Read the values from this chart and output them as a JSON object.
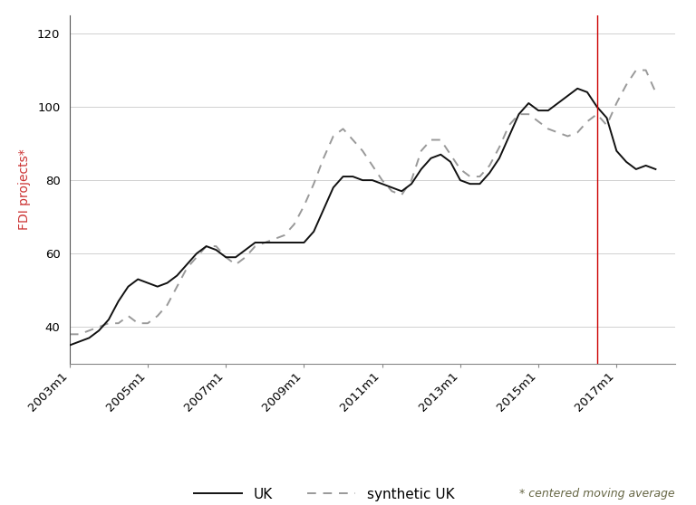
{
  "ylabel": "FDI projects*",
  "ylim": [
    30,
    125
  ],
  "yticks": [
    40,
    60,
    80,
    100,
    120
  ],
  "vline_x": 2016.5,
  "vline_color": "#cc0000",
  "background_color": "#ffffff",
  "grid_color": "#d0d0d0",
  "footnote": "* centered moving average",
  "uk_color": "#111111",
  "synthetic_color": "#999999",
  "xtick_labels": [
    "2003m1",
    "2005m1",
    "2007m1",
    "2009m1",
    "2011m1",
    "2013m1",
    "2015m1",
    "2017m1"
  ],
  "xtick_positions": [
    2003.0,
    2005.0,
    2007.0,
    2009.0,
    2011.0,
    2013.0,
    2015.0,
    2017.0
  ],
  "xlim": [
    2003.0,
    2018.5
  ],
  "uk_x": [
    2003.0,
    2003.25,
    2003.5,
    2003.75,
    2004.0,
    2004.25,
    2004.5,
    2004.75,
    2005.0,
    2005.25,
    2005.5,
    2005.75,
    2006.0,
    2006.25,
    2006.5,
    2006.75,
    2007.0,
    2007.25,
    2007.5,
    2007.75,
    2008.0,
    2008.25,
    2008.5,
    2008.75,
    2009.0,
    2009.25,
    2009.5,
    2009.75,
    2010.0,
    2010.25,
    2010.5,
    2010.75,
    2011.0,
    2011.25,
    2011.5,
    2011.75,
    2012.0,
    2012.25,
    2012.5,
    2012.75,
    2013.0,
    2013.25,
    2013.5,
    2013.75,
    2014.0,
    2014.25,
    2014.5,
    2014.75,
    2015.0,
    2015.25,
    2015.5,
    2015.75,
    2016.0,
    2016.25,
    2016.5,
    2016.75,
    2017.0,
    2017.25,
    2017.5,
    2017.75,
    2018.0
  ],
  "uk_y": [
    35,
    36,
    37,
    39,
    42,
    47,
    51,
    53,
    52,
    51,
    52,
    54,
    57,
    60,
    62,
    61,
    59,
    59,
    61,
    63,
    63,
    63,
    63,
    63,
    63,
    66,
    72,
    78,
    81,
    81,
    80,
    80,
    79,
    78,
    77,
    79,
    83,
    86,
    87,
    85,
    80,
    79,
    79,
    82,
    86,
    92,
    98,
    101,
    99,
    99,
    101,
    103,
    105,
    104,
    100,
    97,
    88,
    85,
    83,
    84,
    83
  ],
  "synth_x": [
    2003.0,
    2003.25,
    2003.5,
    2003.75,
    2004.0,
    2004.25,
    2004.5,
    2004.75,
    2005.0,
    2005.25,
    2005.5,
    2005.75,
    2006.0,
    2006.25,
    2006.5,
    2006.75,
    2007.0,
    2007.25,
    2007.5,
    2007.75,
    2008.0,
    2008.25,
    2008.5,
    2008.75,
    2009.0,
    2009.25,
    2009.5,
    2009.75,
    2010.0,
    2010.25,
    2010.5,
    2010.75,
    2011.0,
    2011.25,
    2011.5,
    2011.75,
    2012.0,
    2012.25,
    2012.5,
    2012.75,
    2013.0,
    2013.25,
    2013.5,
    2013.75,
    2014.0,
    2014.25,
    2014.5,
    2014.75,
    2015.0,
    2015.25,
    2015.5,
    2015.75,
    2016.0,
    2016.25,
    2016.5,
    2016.75,
    2017.0,
    2017.25,
    2017.5,
    2017.75,
    2018.0
  ],
  "synth_y": [
    38,
    38,
    39,
    40,
    41,
    41,
    43,
    41,
    41,
    43,
    46,
    51,
    56,
    59,
    62,
    62,
    59,
    57,
    59,
    62,
    63,
    64,
    65,
    68,
    73,
    79,
    86,
    92,
    94,
    91,
    88,
    84,
    80,
    77,
    76,
    80,
    88,
    91,
    91,
    87,
    83,
    81,
    81,
    84,
    89,
    95,
    98,
    98,
    96,
    94,
    93,
    92,
    93,
    96,
    98,
    95,
    101,
    106,
    110,
    110,
    104
  ]
}
